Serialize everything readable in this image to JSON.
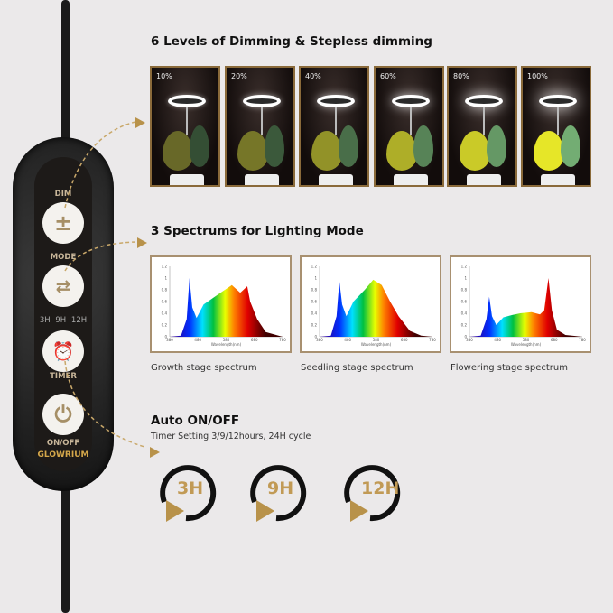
{
  "dimming": {
    "title": "6 Levels of Dimming & Stepless dimming",
    "levels": [
      "10%",
      "20%",
      "40%",
      "60%",
      "80%",
      "100%"
    ],
    "brightness": [
      0.1,
      0.2,
      0.4,
      0.6,
      0.8,
      1.0
    ]
  },
  "spectrum": {
    "title": "3 Spectrums for Lighting Mode",
    "captions": [
      "Growth stage spectrum",
      "Seedling stage spectrum",
      "Flowering stage spectrum"
    ]
  },
  "timer": {
    "title": "Auto ON/OFF",
    "subtitle": "Timer Setting 3/9/12hours, 24H  cycle",
    "options": [
      "3H",
      "9H",
      "12H"
    ]
  },
  "controller": {
    "dim": "DIM",
    "dim_icon": "plus-minus-icon",
    "mode": "MODE",
    "mode_icon": "cycle-arrows-icon",
    "indicators": [
      "3H",
      "9H",
      "12H"
    ],
    "timer": "TIMER",
    "timer_icon": "alarm-clock-icon",
    "onoff": "ON/OFF",
    "power_icon": "power-icon",
    "brand": "GLOWRIUM"
  },
  "colors": {
    "accent": "#b8924a",
    "frame": "#8a6a3a"
  },
  "chart_data": [
    {
      "type": "area",
      "title": "",
      "xlabel": "Wavelength(nm)",
      "xlim": [
        380,
        780
      ],
      "ylim": [
        0,
        1.2
      ],
      "yticks": [
        0,
        0.2,
        0.4,
        0.6,
        0.8,
        1,
        1.2
      ],
      "xticks": [
        380,
        480,
        580,
        680,
        780
      ],
      "x": [
        380,
        420,
        440,
        450,
        460,
        475,
        500,
        530,
        560,
        600,
        630,
        655,
        665,
        690,
        720,
        780
      ],
      "y": [
        0,
        0.02,
        0.3,
        1.0,
        0.5,
        0.32,
        0.55,
        0.65,
        0.75,
        0.88,
        0.75,
        0.86,
        0.6,
        0.3,
        0.08,
        0
      ]
    },
    {
      "type": "area",
      "title": "",
      "xlabel": "Wavelength(nm)",
      "xlim": [
        380,
        780
      ],
      "ylim": [
        0,
        1.2
      ],
      "yticks": [
        0,
        0.2,
        0.4,
        0.6,
        0.8,
        1,
        1.2
      ],
      "xticks": [
        380,
        480,
        580,
        680,
        780
      ],
      "x": [
        380,
        420,
        440,
        450,
        460,
        475,
        500,
        540,
        570,
        600,
        630,
        660,
        700,
        740,
        780
      ],
      "y": [
        0,
        0.02,
        0.35,
        0.95,
        0.55,
        0.35,
        0.6,
        0.8,
        0.97,
        0.88,
        0.6,
        0.35,
        0.1,
        0.02,
        0
      ]
    },
    {
      "type": "area",
      "title": "",
      "xlabel": "Wavelength(nm)",
      "xlim": [
        380,
        780
      ],
      "ylim": [
        0,
        1.2
      ],
      "yticks": [
        0,
        0.2,
        0.4,
        0.6,
        0.8,
        1,
        1.2
      ],
      "xticks": [
        380,
        480,
        580,
        680,
        780
      ],
      "x": [
        380,
        420,
        440,
        450,
        460,
        475,
        500,
        530,
        560,
        600,
        630,
        645,
        660,
        672,
        690,
        720,
        780
      ],
      "y": [
        0,
        0.02,
        0.3,
        0.68,
        0.35,
        0.2,
        0.33,
        0.37,
        0.4,
        0.42,
        0.38,
        0.45,
        1.0,
        0.45,
        0.12,
        0.03,
        0
      ]
    }
  ]
}
